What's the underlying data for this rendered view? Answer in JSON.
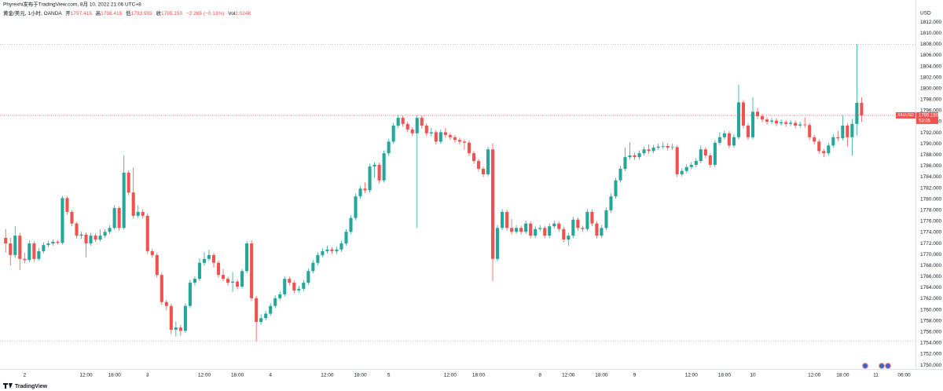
{
  "chart_data": {
    "type": "candlestick",
    "publisher": "Phyrexhi发布于TradingView.com, 8月 10, 2022 21:06 UTC+8",
    "symbol_info": "黄金/美元, 1小时, OANDA",
    "legend_labels": {
      "open": "开",
      "high": "高",
      "low": "低",
      "close": "收"
    },
    "change": "−2.265 (−0.13%)",
    "volume_label": "Vol",
    "volume": "2.024K",
    "currency": "USD",
    "symbol": "XAUUSD",
    "last_price_label": "1795.150",
    "countdown": "53:05",
    "brand": "TradingView",
    "up_color": "#26a69a",
    "down_color": "#ef5350",
    "grid": false,
    "xlim": [
      -1.2,
      192.4
    ],
    "ylim": [
      1749.3,
      1816
    ],
    "xticks": [
      {
        "value": 4,
        "label": "2"
      },
      {
        "value": 17,
        "label": "12:00"
      },
      {
        "value": 23,
        "label": "18:00"
      },
      {
        "value": 30,
        "label": "3"
      },
      {
        "value": 42,
        "label": "12:00"
      },
      {
        "value": 49,
        "label": "18:00"
      },
      {
        "value": 56,
        "label": "4"
      },
      {
        "value": 68,
        "label": "12:00"
      },
      {
        "value": 75,
        "label": "18:00"
      },
      {
        "value": 81,
        "label": "5"
      },
      {
        "value": 94,
        "label": "12:00"
      },
      {
        "value": 100,
        "label": "18:00"
      },
      {
        "value": 113,
        "label": "8"
      },
      {
        "value": 119,
        "label": "12:00"
      },
      {
        "value": 126,
        "label": "18:00"
      },
      {
        "value": 133,
        "label": "9"
      },
      {
        "value": 145,
        "label": "12:00"
      },
      {
        "value": 152,
        "label": "18:00"
      },
      {
        "value": 158,
        "label": "10"
      },
      {
        "value": 171,
        "label": "12:00"
      },
      {
        "value": 177,
        "label": "18:00"
      },
      {
        "value": 184,
        "label": "11"
      },
      {
        "value": 190,
        "label": "06:00"
      }
    ],
    "yticks": [
      {
        "value": 1750,
        "label": "1750.000"
      },
      {
        "value": 1752,
        "label": "1752.000"
      },
      {
        "value": 1754,
        "label": "1754.000"
      },
      {
        "value": 1756,
        "label": "1756.000"
      },
      {
        "value": 1758,
        "label": "1758.000"
      },
      {
        "value": 1760,
        "label": "1760.000"
      },
      {
        "value": 1762,
        "label": "1762.000"
      },
      {
        "value": 1764,
        "label": "1764.000"
      },
      {
        "value": 1766,
        "label": "1766.000"
      },
      {
        "value": 1768,
        "label": "1768.000"
      },
      {
        "value": 1770,
        "label": "1770.000"
      },
      {
        "value": 1772,
        "label": "1772.000"
      },
      {
        "value": 1774,
        "label": "1774.000"
      },
      {
        "value": 1776,
        "label": "1776.000"
      },
      {
        "value": 1778,
        "label": "1778.000"
      },
      {
        "value": 1780,
        "label": "1780.000"
      },
      {
        "value": 1782,
        "label": "1782.000"
      },
      {
        "value": 1784,
        "label": "1784.000"
      },
      {
        "value": 1786,
        "label": "1786.000"
      },
      {
        "value": 1788,
        "label": "1788.000"
      },
      {
        "value": 1790,
        "label": "1790.000"
      },
      {
        "value": 1792,
        "label": "1792.000"
      },
      {
        "value": 1794,
        "label": "1794.000"
      },
      {
        "value": 1796,
        "label": "1796.000"
      },
      {
        "value": 1798,
        "label": "1798.000"
      },
      {
        "value": 1800,
        "label": "1800.000"
      },
      {
        "value": 1802,
        "label": "1802.000"
      },
      {
        "value": 1804,
        "label": "1804.000"
      },
      {
        "value": 1806,
        "label": "1806.000"
      },
      {
        "value": 1808,
        "label": "1808.000"
      },
      {
        "value": 1810,
        "label": "1810.000"
      },
      {
        "value": 1812,
        "label": "1812.000"
      }
    ],
    "open": [
      1773.0,
      1772.0,
      1769.9,
      1773.4,
      1769.2,
      1769.0,
      1772.0,
      1769.2,
      1770.6,
      1771.7,
      1772.0,
      1772.3,
      1772.1,
      1780.2,
      1777.7,
      1775.6,
      1773.4,
      1773.6,
      1772.0,
      1773.4,
      1772.7,
      1773.4,
      1774.1,
      1774.8,
      1778.4,
      1774.8,
      1784.8,
      1781.2,
      1777.0,
      1777.7,
      1777.0,
      1770.6,
      1769.9,
      1766.3,
      1761.4,
      1760.7,
      1756.4,
      1756.8,
      1756.2,
      1760.7,
      1764.9,
      1765.6,
      1768.5,
      1769.2,
      1769.9,
      1768.5,
      1766.3,
      1765.6,
      1764.9,
      1765.1,
      1764.2,
      1767.0,
      1772.0,
      1762.1,
      1757.8,
      1758.5,
      1759.3,
      1760.7,
      1762.1,
      1762.8,
      1765.6,
      1764.9,
      1763.5,
      1763.8,
      1764.9,
      1767.0,
      1768.5,
      1769.9,
      1770.6,
      1770.9,
      1770.6,
      1770.9,
      1772.0,
      1774.1,
      1776.6,
      1780.5,
      1781.9,
      1781.6,
      1785.9,
      1786.2,
      1783.4,
      1788.3,
      1790.4,
      1793.3,
      1794.7,
      1793.6,
      1792.6,
      1791.9,
      1794.7,
      1793.3,
      1791.9,
      1792.1,
      1790.4,
      1792.1,
      1791.6,
      1791.2,
      1790.7,
      1790.4,
      1790.2,
      1788.3,
      1786.9,
      1785.5,
      1784.5,
      1789.0,
      1769.2,
      1774.8,
      1777.7,
      1774.8,
      1774.1,
      1774.8,
      1774.1,
      1775.6,
      1773.4,
      1774.6,
      1774.8,
      1773.4,
      1775.1,
      1775.6,
      1774.6,
      1772.7,
      1773.4,
      1776.3,
      1774.8,
      1774.6,
      1777.7,
      1775.6,
      1773.4,
      1774.8,
      1778.0,
      1780.5,
      1783.4,
      1785.5,
      1787.6,
      1787.9,
      1787.6,
      1788.3,
      1789.0,
      1788.7,
      1789.3,
      1789.5,
      1789.6,
      1789.3,
      1789.4,
      1784.5,
      1785.1,
      1785.8,
      1786.2,
      1786.9,
      1789.0,
      1787.9,
      1786.2,
      1790.2,
      1791.2,
      1791.9,
      1789.7,
      1791.2,
      1797.5,
      1793.3,
      1791.2,
      1795.8,
      1795.0,
      1794.4,
      1794.0,
      1794.2,
      1793.7,
      1793.9,
      1793.6,
      1793.8,
      1793.3,
      1793.5,
      1793.4,
      1791.2,
      1790.4,
      1788.7,
      1788.3,
      1789.7,
      1791.2,
      1791.0,
      1793.3,
      1791.2,
      1793.6,
      1797.415
    ],
    "high": [
      1774.6,
      1773.0,
      1775.1,
      1773.9,
      1770.3,
      1772.6,
      1772.4,
      1771.2,
      1772.2,
      1772.5,
      1772.7,
      1772.6,
      1780.6,
      1780.5,
      1778.0,
      1775.9,
      1774.1,
      1774.0,
      1773.9,
      1773.8,
      1774.6,
      1774.6,
      1775.3,
      1778.9,
      1778.7,
      1787.9,
      1785.2,
      1785.7,
      1778.9,
      1778.2,
      1777.4,
      1771.0,
      1770.3,
      1766.7,
      1761.8,
      1761.1,
      1757.9,
      1757.3,
      1761.2,
      1765.4,
      1766.1,
      1769.3,
      1770.4,
      1770.9,
      1770.3,
      1768.9,
      1767.4,
      1766.0,
      1766.8,
      1765.5,
      1767.4,
      1772.4,
      1772.6,
      1762.5,
      1759.2,
      1759.8,
      1761.2,
      1762.6,
      1763.3,
      1766.1,
      1766.0,
      1765.3,
      1764.3,
      1765.4,
      1767.5,
      1769.0,
      1770.4,
      1771.1,
      1771.6,
      1771.3,
      1771.4,
      1772.5,
      1774.6,
      1777.1,
      1781.0,
      1782.4,
      1783.0,
      1786.4,
      1786.7,
      1786.6,
      1788.8,
      1790.9,
      1793.8,
      1795.2,
      1795.1,
      1794.0,
      1793.0,
      1795.1,
      1795.1,
      1793.7,
      1792.9,
      1792.5,
      1792.6,
      1792.9,
      1792.0,
      1791.6,
      1791.1,
      1790.8,
      1790.6,
      1788.7,
      1787.3,
      1785.9,
      1789.5,
      1790.1,
      1775.3,
      1778.2,
      1778.1,
      1776.4,
      1775.3,
      1775.2,
      1776.1,
      1776.0,
      1775.1,
      1775.3,
      1775.2,
      1775.6,
      1776.1,
      1776.0,
      1775.0,
      1773.9,
      1776.8,
      1776.7,
      1775.2,
      1778.2,
      1778.1,
      1776.0,
      1775.3,
      1778.5,
      1781.0,
      1783.9,
      1786.0,
      1789.3,
      1790.3,
      1788.4,
      1788.8,
      1789.5,
      1789.9,
      1789.8,
      1790.0,
      1790.3,
      1790.1,
      1790.0,
      1789.8,
      1785.6,
      1786.3,
      1786.7,
      1787.4,
      1789.7,
      1789.4,
      1788.3,
      1790.7,
      1792.1,
      1792.4,
      1792.3,
      1791.7,
      1800.7,
      1797.9,
      1793.7,
      1798.4,
      1796.5,
      1795.4,
      1794.8,
      1794.7,
      1794.6,
      1794.4,
      1794.3,
      1794.3,
      1794.2,
      1794.0,
      1794.8,
      1793.8,
      1791.6,
      1790.8,
      1789.1,
      1790.2,
      1791.7,
      1792.3,
      1795.2,
      1793.7,
      1794.5,
      1808.0,
      1798.415
    ],
    "low": [
      1770.4,
      1768.0,
      1769.4,
      1767.2,
      1768.4,
      1768.6,
      1768.7,
      1768.9,
      1770.2,
      1771.3,
      1771.6,
      1771.8,
      1771.8,
      1777.2,
      1775.1,
      1772.9,
      1772.8,
      1769.5,
      1771.6,
      1772.3,
      1772.4,
      1773.0,
      1773.7,
      1774.5,
      1774.3,
      1774.5,
      1780.7,
      1776.5,
      1776.6,
      1776.5,
      1770.1,
      1769.4,
      1765.8,
      1760.9,
      1759.9,
      1755.6,
      1755.2,
      1755.3,
      1755.8,
      1760.3,
      1764.4,
      1765.2,
      1768.0,
      1768.8,
      1767.6,
      1765.8,
      1765.2,
      1764.4,
      1763.2,
      1763.7,
      1763.9,
      1766.6,
      1761.6,
      1754.3,
      1757.3,
      1758.1,
      1758.9,
      1760.3,
      1761.7,
      1762.4,
      1764.4,
      1763.0,
      1763.1,
      1763.4,
      1764.5,
      1766.6,
      1768.1,
      1769.5,
      1770.2,
      1770.1,
      1770.1,
      1770.5,
      1771.6,
      1773.7,
      1776.2,
      1780.1,
      1781.1,
      1781.2,
      1783.9,
      1782.9,
      1783.0,
      1787.9,
      1790.0,
      1792.9,
      1793.1,
      1792.1,
      1791.4,
      1774.8,
      1792.8,
      1791.4,
      1791.4,
      1789.9,
      1790.0,
      1791.1,
      1790.7,
      1790.2,
      1789.9,
      1788.9,
      1787.8,
      1786.4,
      1785.0,
      1784.0,
      1784.1,
      1765.2,
      1768.8,
      1774.4,
      1774.3,
      1773.6,
      1773.7,
      1773.6,
      1773.7,
      1772.9,
      1773.0,
      1774.2,
      1772.9,
      1773.0,
      1774.7,
      1774.1,
      1772.2,
      1771.6,
      1773.0,
      1774.3,
      1774.1,
      1774.2,
      1775.1,
      1772.9,
      1773.0,
      1774.4,
      1777.6,
      1780.1,
      1783.0,
      1785.1,
      1787.2,
      1787.1,
      1787.2,
      1787.9,
      1788.2,
      1788.3,
      1788.9,
      1789.1,
      1788.8,
      1788.9,
      1784.0,
      1784.1,
      1784.7,
      1785.4,
      1785.8,
      1786.5,
      1787.4,
      1785.7,
      1785.8,
      1789.8,
      1790.8,
      1789.2,
      1789.3,
      1790.8,
      1792.8,
      1790.7,
      1790.8,
      1794.5,
      1793.9,
      1793.5,
      1793.6,
      1793.2,
      1793.3,
      1793.1,
      1793.2,
      1792.8,
      1792.9,
      1792.9,
      1790.7,
      1789.9,
      1788.2,
      1787.6,
      1787.9,
      1789.3,
      1790.5,
      1790.6,
      1789.5,
      1787.9,
      1791.5,
      1793.955
    ],
    "close": [
      1772.0,
      1769.9,
      1773.4,
      1769.2,
      1769.0,
      1772.0,
      1769.2,
      1770.6,
      1771.7,
      1772.0,
      1772.3,
      1772.1,
      1780.2,
      1777.7,
      1775.6,
      1773.4,
      1773.6,
      1772.0,
      1773.4,
      1772.7,
      1773.4,
      1774.1,
      1774.8,
      1778.4,
      1774.8,
      1784.8,
      1781.2,
      1777.0,
      1777.7,
      1777.0,
      1770.6,
      1769.9,
      1766.3,
      1761.4,
      1760.7,
      1756.4,
      1756.8,
      1756.2,
      1760.7,
      1764.9,
      1765.6,
      1768.5,
      1769.2,
      1769.9,
      1768.5,
      1766.3,
      1765.6,
      1764.9,
      1765.1,
      1764.2,
      1767.0,
      1772.0,
      1762.1,
      1757.8,
      1758.5,
      1759.3,
      1760.7,
      1762.1,
      1762.8,
      1765.6,
      1764.9,
      1763.5,
      1763.8,
      1764.9,
      1767.0,
      1768.5,
      1769.9,
      1770.6,
      1770.9,
      1770.6,
      1770.9,
      1772.0,
      1774.1,
      1776.6,
      1780.5,
      1781.9,
      1781.6,
      1785.9,
      1786.2,
      1783.4,
      1788.3,
      1790.4,
      1793.3,
      1794.7,
      1793.6,
      1792.6,
      1791.9,
      1794.7,
      1793.3,
      1791.9,
      1792.1,
      1790.4,
      1792.1,
      1791.6,
      1791.2,
      1790.7,
      1790.4,
      1790.2,
      1788.3,
      1786.9,
      1785.5,
      1784.5,
      1789.0,
      1769.2,
      1774.8,
      1777.7,
      1774.8,
      1774.1,
      1774.8,
      1774.1,
      1775.6,
      1773.4,
      1774.6,
      1774.8,
      1773.4,
      1775.1,
      1775.6,
      1774.6,
      1772.7,
      1773.4,
      1776.3,
      1774.8,
      1774.6,
      1777.7,
      1775.6,
      1773.4,
      1774.8,
      1778.0,
      1780.5,
      1783.4,
      1785.5,
      1787.6,
      1787.9,
      1787.6,
      1788.3,
      1789.0,
      1788.7,
      1789.3,
      1789.5,
      1789.6,
      1789.3,
      1789.4,
      1784.5,
      1785.1,
      1785.8,
      1786.2,
      1786.9,
      1789.0,
      1787.9,
      1786.2,
      1790.2,
      1791.2,
      1791.9,
      1789.7,
      1791.2,
      1797.5,
      1793.3,
      1791.2,
      1795.8,
      1795.0,
      1794.4,
      1794.0,
      1794.2,
      1793.7,
      1793.9,
      1793.6,
      1793.8,
      1793.3,
      1793.5,
      1793.4,
      1791.2,
      1790.4,
      1788.7,
      1788.3,
      1789.7,
      1791.2,
      1791.0,
      1793.3,
      1791.2,
      1793.6,
      1797.415,
      1795.15
    ]
  }
}
